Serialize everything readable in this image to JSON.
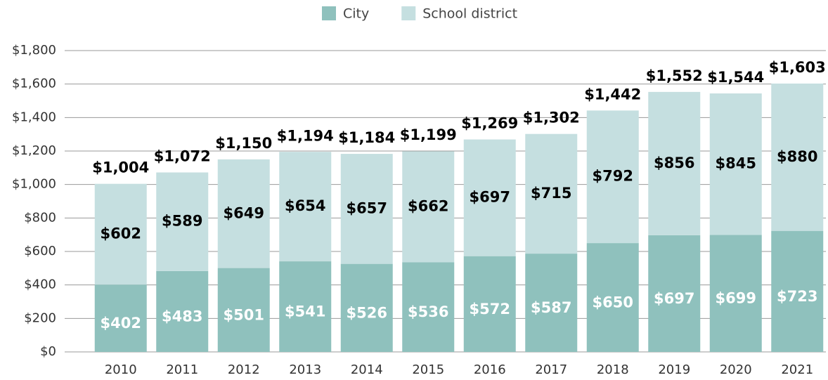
{
  "chart_data": {
    "type": "stacked_bar",
    "categories": [
      "2010",
      "2011",
      "2012",
      "2013",
      "2014",
      "2015",
      "2016",
      "2017",
      "2018",
      "2019",
      "2020",
      "2021"
    ],
    "series": [
      {
        "name": "City",
        "color": "#8fc1bd",
        "values": [
          402,
          483,
          501,
          541,
          526,
          536,
          572,
          587,
          650,
          697,
          699,
          723
        ],
        "value_labels": [
          "$402",
          "$483",
          "$501",
          "$541",
          "$526",
          "$536",
          "$572",
          "$587",
          "$650",
          "$697",
          "$699",
          "$723"
        ]
      },
      {
        "name": "School district",
        "color": "#c5dfe0",
        "values": [
          602,
          589,
          649,
          654,
          657,
          662,
          697,
          715,
          792,
          856,
          845,
          880
        ],
        "value_labels": [
          "$602",
          "$589",
          "$649",
          "$654",
          "$657",
          "$662",
          "$697",
          "$715",
          "$792",
          "$856",
          "$845",
          "$880"
        ]
      }
    ],
    "totals": [
      1004,
      1072,
      1150,
      1194,
      1184,
      1199,
      1269,
      1302,
      1442,
      1552,
      1544,
      1603
    ],
    "total_labels": [
      "$1,004",
      "$1,072",
      "$1,150",
      "$1,194",
      "$1,184",
      "$1,199",
      "$1,269",
      "$1,302",
      "$1,442",
      "$1,552",
      "$1,544",
      "$1,603"
    ],
    "ylim": [
      0,
      1800
    ],
    "yticks": [
      {
        "value": 0,
        "label": "$0"
      },
      {
        "value": 200,
        "label": "$200"
      },
      {
        "value": 400,
        "label": "$400"
      },
      {
        "value": 600,
        "label": "$600"
      },
      {
        "value": 800,
        "label": "$800"
      },
      {
        "value": 1000,
        "label": "$1,000"
      },
      {
        "value": 1200,
        "label": "$1,200"
      },
      {
        "value": 1400,
        "label": "$1,400"
      },
      {
        "value": 1600,
        "label": "$1,600"
      },
      {
        "value": 1800,
        "label": "$1,800"
      }
    ],
    "grid": true,
    "legend": "top"
  }
}
